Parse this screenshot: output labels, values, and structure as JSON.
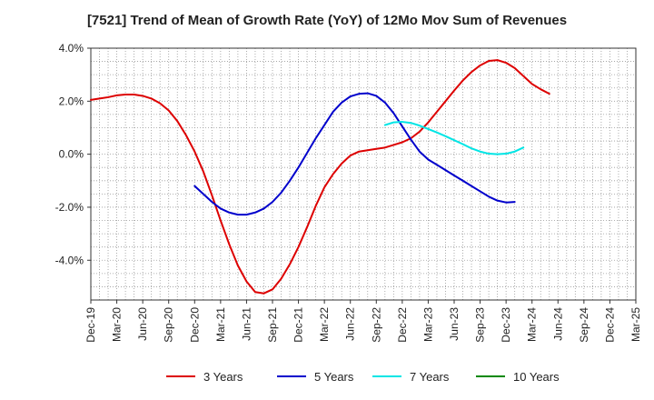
{
  "chart_data": {
    "type": "line",
    "title": "[7521]  Trend of Mean of Growth Rate (YoY) of 12Mo Mov Sum of Revenues",
    "xlabel": "",
    "ylabel": "",
    "ylim": [
      -5.5,
      4.0
    ],
    "grid": true,
    "legend_position": "bottom",
    "y_ticks": [
      4.0,
      2.0,
      0.0,
      -2.0,
      -4.0
    ],
    "y_tick_labels": [
      "4.0%",
      "2.0%",
      "0.0%",
      "-2.0%",
      "-4.0%"
    ],
    "x_tick_labels": [
      "Dec-19",
      "Mar-20",
      "Jun-20",
      "Sep-20",
      "Dec-20",
      "Mar-21",
      "Jun-21",
      "Sep-21",
      "Dec-21",
      "Mar-22",
      "Jun-22",
      "Sep-22",
      "Dec-22",
      "Mar-23",
      "Jun-23",
      "Sep-23",
      "Dec-23",
      "Mar-24",
      "Jun-24",
      "Sep-24",
      "Dec-24",
      "Mar-25"
    ],
    "series": [
      {
        "name": "3 Years",
        "color": "#dd0000",
        "start_index": 0,
        "values": [
          2.05,
          2.1,
          2.15,
          2.22,
          2.25,
          2.25,
          2.2,
          2.1,
          1.92,
          1.65,
          1.25,
          0.72,
          0.1,
          -0.65,
          -1.55,
          -2.5,
          -3.4,
          -4.2,
          -4.8,
          -5.2,
          -5.25,
          -5.1,
          -4.7,
          -4.15,
          -3.5,
          -2.75,
          -1.95,
          -1.25,
          -0.75,
          -0.35,
          -0.05,
          0.1,
          0.15,
          0.2,
          0.25,
          0.35,
          0.45,
          0.6,
          0.85,
          1.2,
          1.6,
          2.0,
          2.4,
          2.78,
          3.1,
          3.35,
          3.52,
          3.55,
          3.45,
          3.25,
          2.95,
          2.65,
          2.45,
          2.28
        ]
      },
      {
        "name": "5 Years",
        "color": "#0000cc",
        "start_index": 12,
        "values": [
          -1.2,
          -1.5,
          -1.8,
          -2.05,
          -2.2,
          -2.28,
          -2.28,
          -2.2,
          -2.05,
          -1.8,
          -1.45,
          -1.0,
          -0.5,
          0.05,
          0.6,
          1.1,
          1.6,
          1.95,
          2.18,
          2.28,
          2.3,
          2.2,
          1.95,
          1.55,
          1.05,
          0.55,
          0.1,
          -0.2,
          -0.4,
          -0.6,
          -0.8,
          -1.0,
          -1.2,
          -1.4,
          -1.6,
          -1.75,
          -1.82,
          -1.8
        ]
      },
      {
        "name": "7 Years",
        "color": "#00e5e5",
        "start_index": 34,
        "values": [
          1.1,
          1.2,
          1.22,
          1.18,
          1.08,
          0.95,
          0.82,
          0.68,
          0.53,
          0.38,
          0.22,
          0.1,
          0.02,
          0.0,
          0.02,
          0.1,
          0.25
        ]
      },
      {
        "name": "10 Years",
        "color": "#008800",
        "start_index": 0,
        "values": []
      }
    ]
  }
}
